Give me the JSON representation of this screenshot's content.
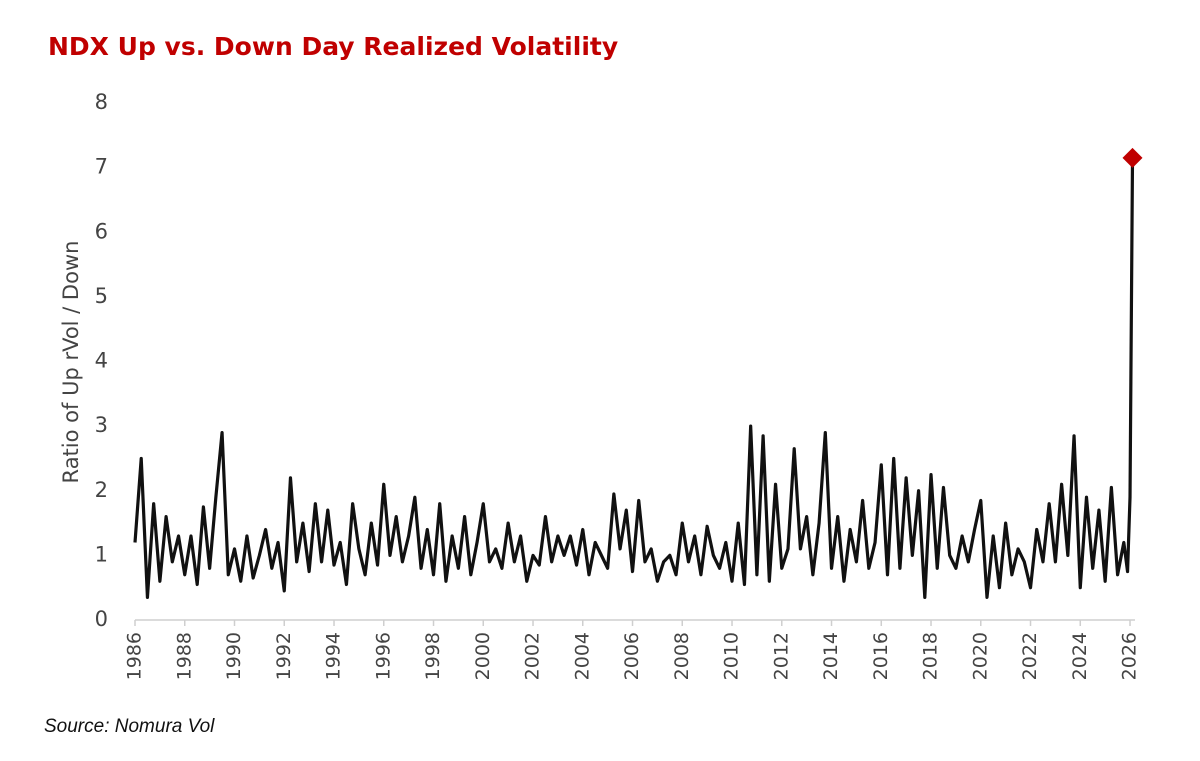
{
  "chart_data": {
    "type": "line",
    "title": "NDX Up vs. Down Day Realized Volatility",
    "y_label": "Ratio of Up rVol / Down",
    "source": "Source: Nomura Vol",
    "color": "#111111",
    "marker_color": "#c00000",
    "x": [
      1986,
      1986.25,
      1986.5,
      1986.75,
      1987,
      1987.25,
      1987.5,
      1987.75,
      1988,
      1988.25,
      1988.5,
      1988.75,
      1989,
      1989.25,
      1989.5,
      1989.75,
      1990,
      1990.25,
      1990.5,
      1990.75,
      1991,
      1991.25,
      1991.5,
      1991.75,
      1992,
      1992.25,
      1992.5,
      1992.75,
      1993,
      1993.25,
      1993.5,
      1993.75,
      1994,
      1994.25,
      1994.5,
      1994.75,
      1995,
      1995.25,
      1995.5,
      1995.75,
      1996,
      1996.25,
      1996.5,
      1996.75,
      1997,
      1997.25,
      1997.5,
      1997.75,
      1998,
      1998.25,
      1998.5,
      1998.75,
      1999,
      1999.25,
      1999.5,
      1999.75,
      2000,
      2000.25,
      2000.5,
      2000.75,
      2001,
      2001.25,
      2001.5,
      2001.75,
      2002,
      2002.25,
      2002.5,
      2002.75,
      2003,
      2003.25,
      2003.5,
      2003.75,
      2004,
      2004.25,
      2004.5,
      2004.75,
      2005,
      2005.25,
      2005.5,
      2005.75,
      2006,
      2006.25,
      2006.5,
      2006.75,
      2007,
      2007.25,
      2007.5,
      2007.75,
      2008,
      2008.25,
      2008.5,
      2008.75,
      2009,
      2009.25,
      2009.5,
      2009.75,
      2010,
      2010.25,
      2010.5,
      2010.75,
      2011,
      2011.25,
      2011.5,
      2011.75,
      2012,
      2012.25,
      2012.5,
      2012.75,
      2013,
      2013.25,
      2013.5,
      2013.75,
      2014,
      2014.25,
      2014.5,
      2014.75,
      2015,
      2015.25,
      2015.5,
      2015.75,
      2016,
      2016.25,
      2016.5,
      2016.75,
      2017,
      2017.25,
      2017.5,
      2017.75,
      2018,
      2018.25,
      2018.5,
      2018.75,
      2019,
      2019.25,
      2019.5,
      2019.75,
      2020,
      2020.25,
      2020.5,
      2020.75,
      2021,
      2021.25,
      2021.5,
      2021.75,
      2022,
      2022.25,
      2022.5,
      2022.75,
      2023,
      2023.25,
      2023.5,
      2023.75,
      2024,
      2024.25,
      2024.5,
      2024.75,
      2025,
      2025.25,
      2025.5,
      2025.75,
      2025.9,
      2026,
      2026.1
    ],
    "values": [
      1.2,
      2.5,
      0.35,
      1.8,
      0.6,
      1.6,
      0.9,
      1.3,
      0.7,
      1.3,
      0.55,
      1.75,
      0.8,
      1.9,
      2.9,
      0.7,
      1.1,
      0.6,
      1.3,
      0.65,
      1.0,
      1.4,
      0.8,
      1.2,
      0.45,
      2.2,
      0.9,
      1.5,
      0.75,
      1.8,
      0.9,
      1.7,
      0.85,
      1.2,
      0.55,
      1.8,
      1.1,
      0.7,
      1.5,
      0.85,
      2.1,
      1.0,
      1.6,
      0.9,
      1.3,
      1.9,
      0.8,
      1.4,
      0.7,
      1.8,
      0.6,
      1.3,
      0.8,
      1.6,
      0.7,
      1.2,
      1.8,
      0.9,
      1.1,
      0.8,
      1.5,
      0.9,
      1.3,
      0.6,
      1.0,
      0.85,
      1.6,
      0.9,
      1.3,
      1.0,
      1.3,
      0.85,
      1.4,
      0.7,
      1.2,
      1.0,
      0.8,
      1.95,
      1.1,
      1.7,
      0.75,
      1.85,
      0.9,
      1.1,
      0.6,
      0.9,
      1.0,
      0.7,
      1.5,
      0.9,
      1.3,
      0.7,
      1.45,
      1.0,
      0.8,
      1.2,
      0.6,
      1.5,
      0.55,
      3.0,
      0.7,
      2.85,
      0.6,
      2.1,
      0.8,
      1.1,
      2.65,
      1.1,
      1.6,
      0.7,
      1.5,
      2.9,
      0.8,
      1.6,
      0.6,
      1.4,
      0.9,
      1.85,
      0.8,
      1.2,
      2.4,
      0.7,
      2.5,
      0.8,
      2.2,
      1.0,
      2.0,
      0.35,
      2.25,
      0.8,
      2.05,
      1.0,
      0.8,
      1.3,
      0.9,
      1.4,
      1.85,
      0.35,
      1.3,
      0.5,
      1.5,
      0.7,
      1.1,
      0.9,
      0.5,
      1.4,
      0.9,
      1.8,
      0.9,
      2.1,
      1.0,
      2.85,
      0.5,
      1.9,
      0.8,
      1.7,
      0.6,
      2.05,
      0.7,
      1.2,
      0.75,
      1.9,
      7.15
    ],
    "xlim": [
      1986,
      2026.2
    ],
    "xticks": [
      1986,
      1988,
      1990,
      1992,
      1994,
      1996,
      1998,
      2000,
      2002,
      2004,
      2006,
      2008,
      2010,
      2012,
      2014,
      2016,
      2018,
      2020,
      2022,
      2024,
      2026
    ],
    "ylim": [
      0,
      8
    ],
    "yticks": [
      0,
      1,
      2,
      3,
      4,
      5,
      6,
      7,
      8
    ]
  }
}
